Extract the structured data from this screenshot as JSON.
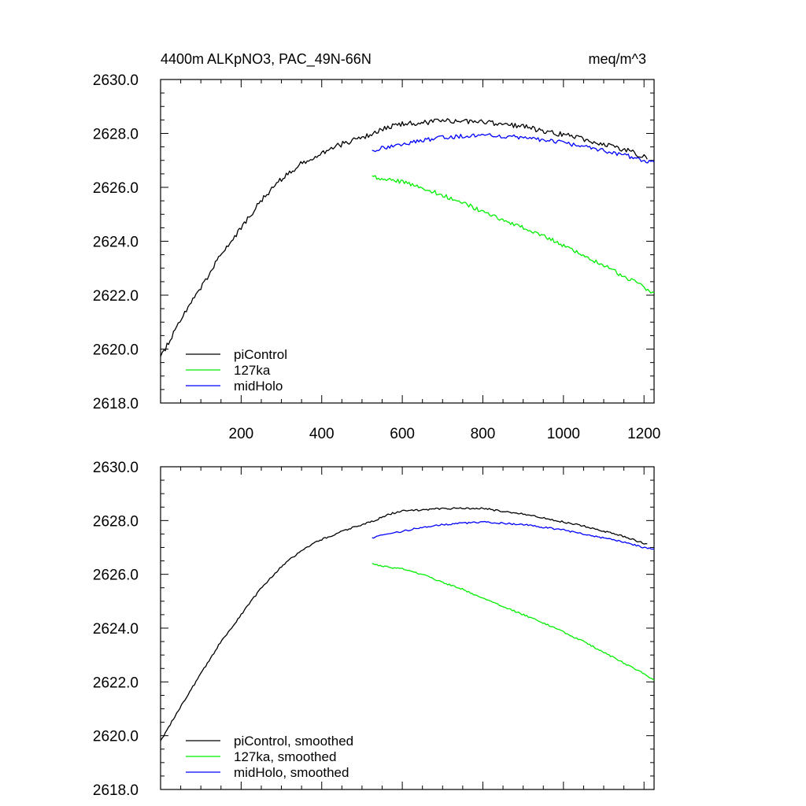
{
  "chart_data": [
    {
      "type": "line",
      "title_left": "4400m ALKpNO3, PAC_49N-66N",
      "title_right": "meq/m^3",
      "xlabel": "",
      "ylabel": "",
      "xlim": [
        0,
        1225
      ],
      "ylim": [
        2618,
        2630
      ],
      "x_ticks": [
        200,
        400,
        600,
        800,
        1000,
        1200
      ],
      "x_tick_labels": [
        "200",
        "400",
        "600",
        "800",
        "1000",
        "1200"
      ],
      "y_ticks": [
        2618,
        2620,
        2622,
        2624,
        2626,
        2628,
        2630
      ],
      "y_tick_labels": [
        "2618.0",
        "2620.0",
        "2622.0",
        "2624.0",
        "2626.0",
        "2628.0",
        "2630.0"
      ],
      "grid": false,
      "legend_position": "bottom-left",
      "series": [
        {
          "name": "piControl",
          "color": "#000000",
          "noise": 0.1,
          "x": [
            0,
            50,
            100,
            150,
            200,
            250,
            300,
            350,
            400,
            450,
            500,
            530,
            570,
            600,
            650,
            700,
            750,
            800,
            850,
            900,
            950,
            1000,
            1050,
            1100,
            1150,
            1200,
            1210
          ],
          "values": [
            2619.7,
            2621.1,
            2622.3,
            2623.5,
            2624.5,
            2625.5,
            2626.3,
            2626.9,
            2627.3,
            2627.6,
            2627.85,
            2628.0,
            2628.25,
            2628.35,
            2628.4,
            2628.45,
            2628.45,
            2628.45,
            2628.35,
            2628.25,
            2628.1,
            2627.95,
            2627.8,
            2627.6,
            2627.4,
            2627.15,
            2627.1
          ]
        },
        {
          "name": "127ka",
          "color": "#00ee00",
          "noise": 0.08,
          "x": [
            525,
            550,
            600,
            650,
            700,
            750,
            800,
            850,
            900,
            950,
            1000,
            1050,
            1100,
            1150,
            1200,
            1225
          ],
          "values": [
            2626.4,
            2626.3,
            2626.2,
            2626.0,
            2625.7,
            2625.45,
            2625.1,
            2624.8,
            2624.5,
            2624.2,
            2623.85,
            2623.5,
            2623.1,
            2622.7,
            2622.3,
            2622.05
          ]
        },
        {
          "name": "midHolo",
          "color": "#0000ff",
          "noise": 0.08,
          "x": [
            525,
            550,
            600,
            650,
            700,
            750,
            800,
            850,
            900,
            950,
            1000,
            1050,
            1100,
            1150,
            1200,
            1225
          ],
          "values": [
            2627.35,
            2627.45,
            2627.6,
            2627.75,
            2627.85,
            2627.9,
            2627.95,
            2627.9,
            2627.85,
            2627.75,
            2627.65,
            2627.5,
            2627.35,
            2627.2,
            2627.0,
            2626.9
          ]
        }
      ]
    },
    {
      "type": "line",
      "title_left": "",
      "title_right": "",
      "xlabel": "",
      "ylabel": "",
      "xlim": [
        0,
        1225
      ],
      "ylim": [
        2618,
        2630
      ],
      "x_ticks": [
        200,
        400,
        600,
        800,
        1000,
        1200
      ],
      "x_tick_labels": [],
      "y_ticks": [
        2618,
        2620,
        2622,
        2624,
        2626,
        2628,
        2630
      ],
      "y_tick_labels": [
        "2618.0",
        "2620.0",
        "2622.0",
        "2624.0",
        "2626.0",
        "2628.0",
        "2630.0"
      ],
      "grid": false,
      "legend_position": "bottom-left",
      "series": [
        {
          "name": "piControl, smoothed",
          "color": "#000000",
          "noise": 0.035,
          "x": [
            0,
            50,
            100,
            150,
            200,
            250,
            300,
            350,
            400,
            450,
            500,
            530,
            570,
            600,
            650,
            700,
            750,
            800,
            850,
            900,
            950,
            1000,
            1050,
            1100,
            1150,
            1200,
            1210
          ],
          "values": [
            2619.8,
            2621.1,
            2622.3,
            2623.5,
            2624.5,
            2625.5,
            2626.3,
            2626.9,
            2627.3,
            2627.6,
            2627.85,
            2628.0,
            2628.25,
            2628.35,
            2628.4,
            2628.45,
            2628.45,
            2628.45,
            2628.35,
            2628.25,
            2628.1,
            2627.95,
            2627.8,
            2627.6,
            2627.4,
            2627.15,
            2627.15
          ]
        },
        {
          "name": "127ka, smoothed",
          "color": "#00ee00",
          "noise": 0.03,
          "x": [
            525,
            550,
            600,
            650,
            700,
            750,
            800,
            850,
            900,
            950,
            1000,
            1050,
            1100,
            1150,
            1200,
            1225
          ],
          "values": [
            2626.4,
            2626.3,
            2626.2,
            2626.0,
            2625.7,
            2625.45,
            2625.1,
            2624.8,
            2624.5,
            2624.2,
            2623.85,
            2623.5,
            2623.1,
            2622.7,
            2622.3,
            2622.05
          ]
        },
        {
          "name": "midHolo, smoothed",
          "color": "#0000ff",
          "noise": 0.03,
          "x": [
            525,
            550,
            600,
            650,
            700,
            750,
            800,
            850,
            900,
            950,
            1000,
            1050,
            1100,
            1150,
            1200,
            1225
          ],
          "values": [
            2627.35,
            2627.45,
            2627.6,
            2627.75,
            2627.85,
            2627.9,
            2627.95,
            2627.9,
            2627.85,
            2627.75,
            2627.65,
            2627.5,
            2627.35,
            2627.2,
            2627.0,
            2626.95
          ]
        }
      ]
    }
  ]
}
